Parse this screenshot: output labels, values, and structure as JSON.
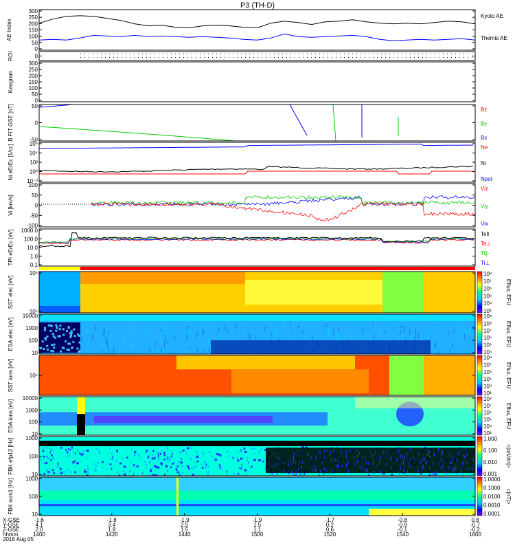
{
  "title": "P3 (TH-D)",
  "colors": {
    "black": "#000000",
    "blue": "#0000ff",
    "red": "#ff0000",
    "green": "#00cc00"
  },
  "chart_data": [
    {
      "type": "line",
      "name": "ae",
      "ylabel": "AE Index",
      "ylim": [
        0,
        300
      ],
      "yticks": [
        "300",
        "250",
        "200",
        "150",
        "100",
        "50",
        "0"
      ],
      "series": [
        {
          "name": "Kyoto AE",
          "color": "#000000",
          "x": [
            1400,
            1405,
            1410,
            1415,
            1420,
            1425,
            1430,
            1435,
            1440,
            1445,
            1450,
            1455,
            1460,
            1465,
            1470,
            1475,
            1480,
            1485,
            1490,
            1495,
            1500,
            1505,
            1510,
            1515,
            1520,
            1525,
            1530,
            1535,
            1540,
            1545,
            1550,
            1555,
            1560
          ],
          "values": [
            200,
            230,
            250,
            255,
            250,
            235,
            220,
            195,
            180,
            185,
            170,
            165,
            180,
            185,
            180,
            170,
            165,
            200,
            215,
            205,
            190,
            210,
            215,
            225,
            210,
            200,
            195,
            200,
            195,
            205,
            215,
            210,
            195
          ]
        },
        {
          "name": "Themis AE",
          "color": "#0000ff",
          "x": [
            1400,
            1405,
            1410,
            1415,
            1420,
            1425,
            1430,
            1435,
            1440,
            1445,
            1450,
            1455,
            1460,
            1465,
            1470,
            1475,
            1480,
            1485,
            1490,
            1495,
            1500,
            1505,
            1510,
            1515,
            1520,
            1525,
            1530,
            1535,
            1540,
            1545,
            1550,
            1555,
            1560
          ],
          "values": [
            75,
            80,
            75,
            90,
            110,
            105,
            100,
            110,
            100,
            105,
            100,
            95,
            100,
            95,
            90,
            80,
            75,
            90,
            120,
            100,
            95,
            100,
            105,
            110,
            100,
            80,
            70,
            75,
            80,
            75,
            80,
            85,
            75
          ]
        }
      ]
    },
    {
      "type": "line",
      "name": "roi",
      "ylabel": "ROI",
      "yticks": [
        "0"
      ]
    },
    {
      "type": "line",
      "name": "kesogram",
      "ylabel": "Keogram",
      "ylim": [
        0,
        300
      ],
      "yticks": [
        "300",
        "250",
        "200",
        "150",
        "100",
        "50",
        "0"
      ]
    },
    {
      "type": "line",
      "name": "bfit",
      "ylabel": "B FIT GSE [nT]",
      "ylim": [
        -75,
        75
      ],
      "yticks": [
        "50",
        "0",
        "-50"
      ],
      "legend": [
        {
          "label": "Bz",
          "color": "#ff0000"
        },
        {
          "label": "By",
          "color": "#00cc00"
        },
        {
          "label": "Bx",
          "color": "#0000ff"
        }
      ]
    },
    {
      "type": "line",
      "name": "density",
      "ylabel": "Ni eErEc [1/cc]",
      "scale": "log",
      "yticks": [
        "10⁶",
        "10⁴",
        "10²",
        "10⁰",
        "10⁻²"
      ],
      "legend": [
        {
          "label": "Ne",
          "color": "#ff0000"
        },
        {
          "label": "Ni",
          "color": "#000000"
        },
        {
          "label": "Npot",
          "color": "#0000ff"
        }
      ]
    },
    {
      "type": "line",
      "name": "velocity",
      "ylabel": "Vi [km/s]",
      "ylim": [
        -150,
        150
      ],
      "yticks": [
        "100",
        "50",
        "0",
        "-50",
        "-100"
      ],
      "legend": [
        {
          "label": "Viz",
          "color": "#ff0000"
        },
        {
          "label": "Viy",
          "color": "#00cc00"
        },
        {
          "label": "Vix",
          "color": "#0000ff"
        }
      ]
    },
    {
      "type": "line",
      "name": "temperature",
      "ylabel": "TPI eErEc [eV]",
      "scale": "log",
      "yticks": [
        "1000.0",
        "100.0",
        "10.0",
        "1.0",
        "0.1"
      ],
      "legend": [
        {
          "label": "Tell",
          "color": "#000000"
        },
        {
          "label": "Te⊥",
          "color": "#ff0000"
        },
        {
          "label": "Ti∥",
          "color": "#00cc00"
        },
        {
          "label": "Ti⊥",
          "color": "#0000ff"
        }
      ]
    },
    {
      "type": "heatmap",
      "name": "sst-e",
      "ylabel": "SST elec [eV]",
      "yticks": [
        "10⁶",
        "10⁵"
      ],
      "cbar": "Eflux, EFU",
      "cticks": [
        "10⁸",
        "10⁷",
        "10⁶",
        "10⁵",
        "10⁴",
        "10³"
      ]
    },
    {
      "type": "heatmap",
      "name": "esa-e",
      "ylabel": "ESA elec [eV]",
      "yticks": [
        "10000",
        "1000",
        "100",
        "10"
      ],
      "cbar": "Eflux, EFU",
      "cticks": [
        "10⁹",
        "10⁸",
        "10⁷",
        "10⁶",
        "10⁵",
        "10⁴"
      ]
    },
    {
      "type": "heatmap",
      "name": "sst-i",
      "ylabel": "SST ions [eV]",
      "yticks": [
        "10⁵"
      ],
      "cbar": "Eflux, EFU",
      "cticks": [
        "10⁸",
        "10⁷",
        "10⁶",
        "10⁵",
        "10⁴",
        "10³"
      ]
    },
    {
      "type": "heatmap",
      "name": "esa-i",
      "ylabel": "ESA ions [eV]",
      "yticks": [
        "10000",
        "1000",
        "100",
        "10"
      ],
      "cbar": "Eflux, EFU",
      "cticks": [
        "10⁸",
        "10⁷",
        "10⁶",
        "10⁵",
        "10⁴",
        "10³"
      ]
    },
    {
      "type": "heatmap",
      "name": "fbk-e",
      "ylabel": "FBK efp12 [Hz]",
      "yticks": [
        "1000",
        "100",
        "10"
      ],
      "cbar": "<|mV/m|>",
      "cticks": [
        "1.000",
        "0.100",
        "0.010",
        "0.001"
      ]
    },
    {
      "type": "heatmap",
      "name": "fbk-b",
      "ylabel": "FBK scm1 [Hz]",
      "yticks": [
        "1000",
        "100",
        "10"
      ],
      "cbar": "<|nT|>",
      "cticks": [
        "1.0000",
        "0.1000",
        "0.0100",
        "0.0010",
        "0.0001"
      ]
    }
  ],
  "xaxis": {
    "rows": [
      {
        "label": "X-GSE",
        "values": [
          "-1.6",
          "-1.8",
          "-1.9",
          "-1.9",
          "-1.7",
          "-0.8",
          "0.8"
        ]
      },
      {
        "label": "Y-GSE",
        "values": [
          "4.1",
          "3.4",
          "2.5",
          "1.5",
          "0.2",
          "-0.9",
          "-0.7"
        ]
      },
      {
        "label": "Z-GSE",
        "values": [
          "2.0",
          "1.8",
          "1.5",
          "1.1",
          "0.6",
          "-0.1",
          "-0.2"
        ]
      },
      {
        "label": "hhmm",
        "values": [
          "1400",
          "1420",
          "1440",
          "1500",
          "1520",
          "1540",
          "1600"
        ]
      }
    ],
    "date": "2016 Aug 05"
  }
}
